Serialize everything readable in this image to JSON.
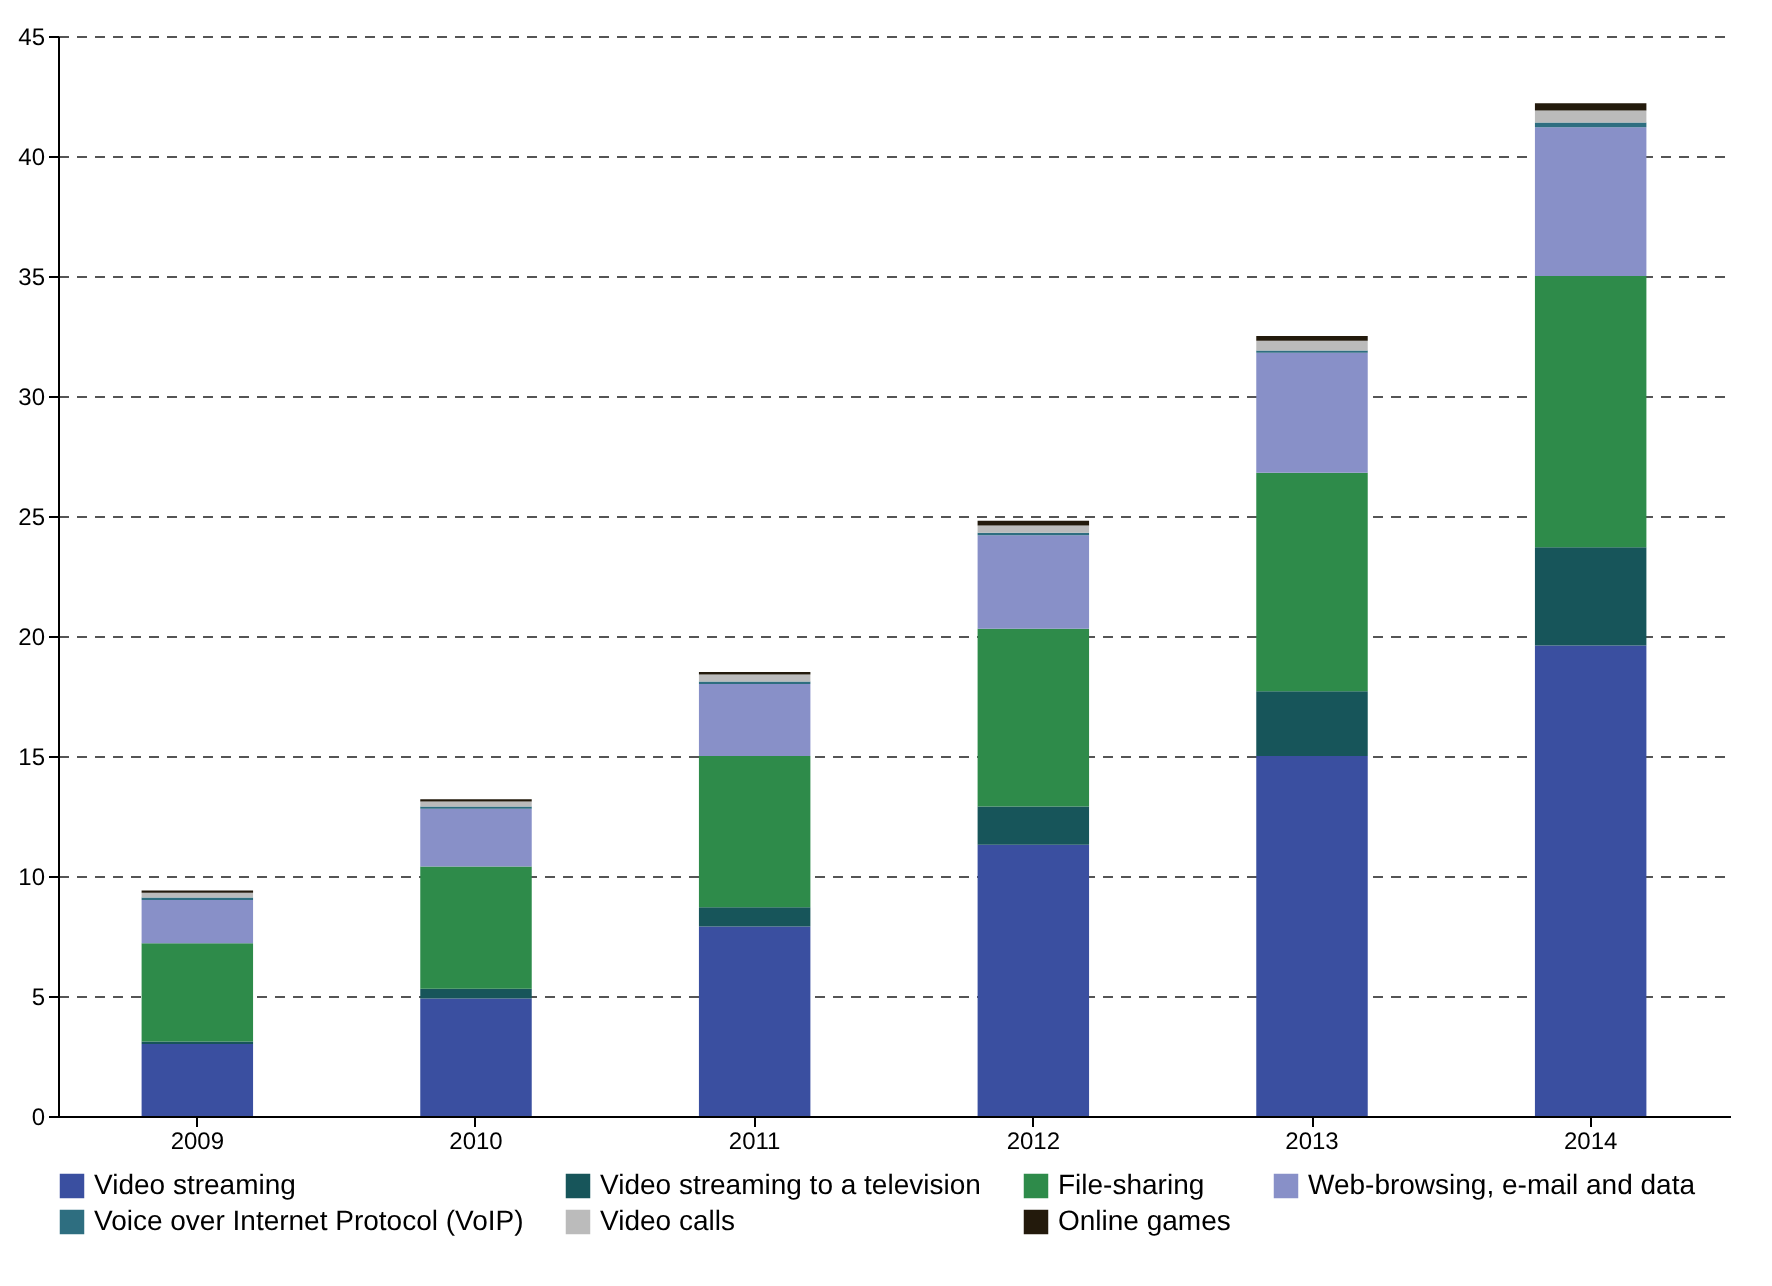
{
  "chart_data": {
    "type": "bar",
    "stacked": true,
    "categories": [
      "2009",
      "2010",
      "2011",
      "2012",
      "2013",
      "2014"
    ],
    "series": [
      {
        "name": "Video streaming",
        "color": "#3a4fa0",
        "values": [
          3.0,
          4.9,
          7.9,
          11.3,
          15.0,
          19.6
        ]
      },
      {
        "name": "Video streaming to a television",
        "color": "#17555a",
        "values": [
          0.1,
          0.4,
          0.8,
          1.6,
          2.7,
          4.1
        ]
      },
      {
        "name": "File-sharing",
        "color": "#2e8b4a",
        "values": [
          4.1,
          5.1,
          6.3,
          7.4,
          9.1,
          11.3
        ]
      },
      {
        "name": "Web-browsing, e-mail and data",
        "color": "#8890c8",
        "values": [
          1.8,
          2.4,
          3.0,
          3.9,
          5.0,
          6.2
        ]
      },
      {
        "name": "Voice over Internet Protocol (VoIP)",
        "color": "#2e6e80",
        "values": [
          0.1,
          0.1,
          0.1,
          0.1,
          0.1,
          0.2
        ]
      },
      {
        "name": "Video calls",
        "color": "#bbbbbb",
        "values": [
          0.2,
          0.2,
          0.3,
          0.3,
          0.4,
          0.5
        ]
      },
      {
        "name": "Online games",
        "color": "#231a0c",
        "values": [
          0.1,
          0.1,
          0.1,
          0.2,
          0.2,
          0.3
        ]
      }
    ],
    "ylim": [
      0,
      45
    ],
    "yticks": [
      0,
      5,
      10,
      15,
      20,
      25,
      30,
      35,
      40,
      45
    ],
    "grid": "y",
    "legend": "bottom"
  }
}
